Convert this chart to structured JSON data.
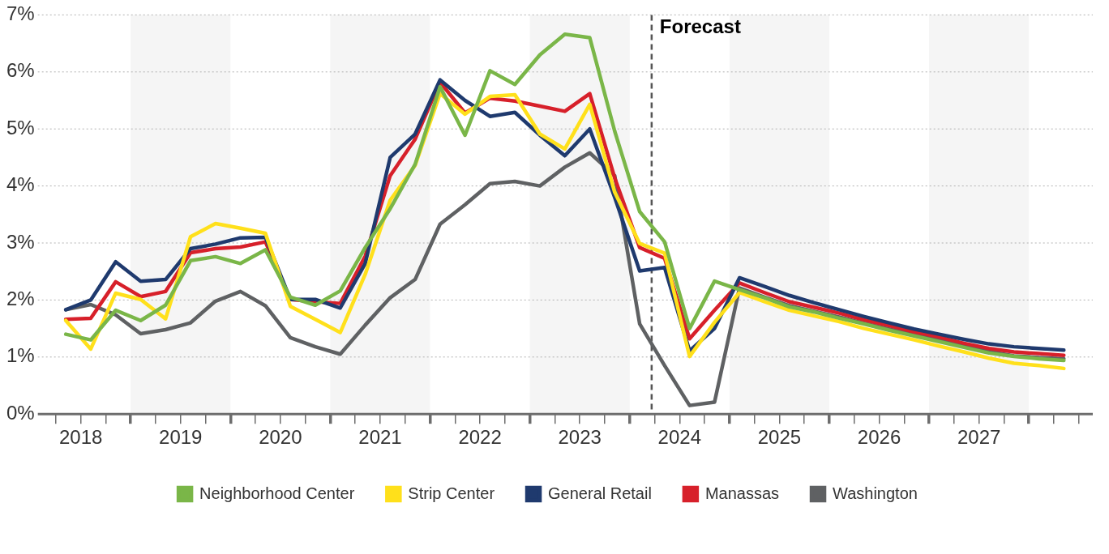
{
  "chart_data": {
    "type": "line",
    "x": [
      2018.35,
      2018.6,
      2018.85,
      2019.1,
      2019.35,
      2019.6,
      2019.85,
      2020.1,
      2020.35,
      2020.6,
      2020.85,
      2021.1,
      2021.35,
      2021.6,
      2021.85,
      2022.1,
      2022.35,
      2022.6,
      2022.85,
      2023.1,
      2023.35,
      2023.6,
      2023.85,
      2024.1,
      2024.35,
      2024.6,
      2024.85,
      2025.1,
      2025.35,
      2025.6,
      2025.85,
      2026.1,
      2026.35,
      2026.6,
      2026.85,
      2027.1,
      2027.35,
      2027.6,
      2027.85,
      2028.1,
      2028.35
    ],
    "series": [
      {
        "name": "Neighborhood Center",
        "color": "#7ab648",
        "values": [
          1.4,
          1.3,
          1.82,
          1.64,
          1.91,
          2.69,
          2.76,
          2.64,
          2.88,
          2.05,
          1.91,
          2.16,
          2.92,
          3.6,
          4.38,
          5.74,
          4.89,
          6.02,
          5.78,
          6.3,
          6.66,
          6.6,
          4.96,
          3.55,
          3.02,
          1.5,
          2.33,
          2.18,
          2.04,
          1.88,
          1.79,
          1.68,
          1.58,
          1.47,
          1.37,
          1.27,
          1.17,
          1.07,
          1.01,
          0.97,
          0.94
        ]
      },
      {
        "name": "Strip Center",
        "color": "#ffe01b",
        "values": [
          1.64,
          1.14,
          2.12,
          2.01,
          1.67,
          3.11,
          3.34,
          3.26,
          3.17,
          1.89,
          1.66,
          1.43,
          2.45,
          3.75,
          4.36,
          5.62,
          5.26,
          5.57,
          5.6,
          4.91,
          4.65,
          5.43,
          3.89,
          2.99,
          2.82,
          1.01,
          1.61,
          2.13,
          1.97,
          1.82,
          1.72,
          1.62,
          1.5,
          1.4,
          1.3,
          1.19,
          1.09,
          0.98,
          0.89,
          0.85,
          0.8
        ]
      },
      {
        "name": "General Retail",
        "color": "#1f3a6e",
        "values": [
          1.83,
          2.0,
          2.67,
          2.33,
          2.36,
          2.9,
          2.98,
          3.09,
          3.1,
          2.01,
          2.01,
          1.86,
          2.64,
          4.5,
          4.91,
          5.86,
          5.5,
          5.22,
          5.29,
          4.89,
          4.53,
          5.0,
          3.8,
          2.51,
          2.57,
          1.11,
          1.5,
          2.39,
          2.24,
          2.08,
          1.95,
          1.83,
          1.71,
          1.6,
          1.49,
          1.4,
          1.31,
          1.23,
          1.18,
          1.15,
          1.12
        ]
      },
      {
        "name": "Manassas",
        "color": "#d7202a",
        "values": [
          1.66,
          1.68,
          2.32,
          2.06,
          2.15,
          2.83,
          2.9,
          2.93,
          3.02,
          2.01,
          1.97,
          1.94,
          2.77,
          4.18,
          4.82,
          5.82,
          5.28,
          5.54,
          5.49,
          5.4,
          5.31,
          5.62,
          4.14,
          2.92,
          2.73,
          1.32,
          1.82,
          2.3,
          2.13,
          1.97,
          1.87,
          1.77,
          1.65,
          1.55,
          1.44,
          1.35,
          1.24,
          1.15,
          1.09,
          1.06,
          1.03
        ]
      },
      {
        "name": "Washington",
        "color": "#5f6163",
        "values": [
          1.83,
          1.92,
          1.74,
          1.41,
          1.48,
          1.6,
          1.98,
          2.15,
          1.9,
          1.34,
          1.18,
          1.05,
          1.56,
          2.04,
          2.36,
          3.33,
          3.67,
          4.04,
          4.08,
          4.0,
          4.33,
          4.58,
          4.18,
          1.58,
          0.85,
          0.15,
          0.21,
          2.21,
          2.05,
          1.9,
          1.8,
          1.7,
          1.59,
          1.49,
          1.39,
          1.3,
          1.19,
          1.1,
          1.02,
          0.99,
          0.97
        ]
      }
    ],
    "xlim": [
      2018.07,
      2028.64
    ],
    "xticks": [
      {
        "value": 2018.25,
        "label": null
      },
      {
        "value": 2018.5,
        "label": "2018"
      },
      {
        "value": 2018.75,
        "label": null
      },
      {
        "value": 2019,
        "label": null
      },
      {
        "value": 2019.25,
        "label": null
      },
      {
        "value": 2019.5,
        "label": "2019"
      },
      {
        "value": 2019.75,
        "label": null
      },
      {
        "value": 2020,
        "label": null
      },
      {
        "value": 2020.25,
        "label": null
      },
      {
        "value": 2020.5,
        "label": "2020"
      },
      {
        "value": 2020.75,
        "label": null
      },
      {
        "value": 2021,
        "label": null
      },
      {
        "value": 2021.25,
        "label": null
      },
      {
        "value": 2021.5,
        "label": "2021"
      },
      {
        "value": 2021.75,
        "label": null
      },
      {
        "value": 2022,
        "label": null
      },
      {
        "value": 2022.25,
        "label": null
      },
      {
        "value": 2022.5,
        "label": "2022"
      },
      {
        "value": 2022.75,
        "label": null
      },
      {
        "value": 2023,
        "label": null
      },
      {
        "value": 2023.25,
        "label": null
      },
      {
        "value": 2023.5,
        "label": "2023"
      },
      {
        "value": 2023.75,
        "label": null
      },
      {
        "value": 2024,
        "label": null
      },
      {
        "value": 2024.25,
        "label": null
      },
      {
        "value": 2024.5,
        "label": "2024"
      },
      {
        "value": 2024.75,
        "label": null
      },
      {
        "value": 2025,
        "label": null
      },
      {
        "value": 2025.25,
        "label": null
      },
      {
        "value": 2025.5,
        "label": "2025"
      },
      {
        "value": 2025.75,
        "label": null
      },
      {
        "value": 2026,
        "label": null
      },
      {
        "value": 2026.25,
        "label": null
      },
      {
        "value": 2026.5,
        "label": "2026"
      },
      {
        "value": 2026.75,
        "label": null
      },
      {
        "value": 2027,
        "label": null
      },
      {
        "value": 2027.25,
        "label": null
      },
      {
        "value": 2027.5,
        "label": "2027"
      },
      {
        "value": 2027.75,
        "label": null
      },
      {
        "value": 2028,
        "label": null
      },
      {
        "value": 2028.25,
        "label": null
      },
      {
        "value": 2028.5,
        "label": null
      }
    ],
    "ylim": [
      0,
      7
    ],
    "yticks": [
      {
        "value": 0,
        "label": "0%"
      },
      {
        "value": 1,
        "label": "1%"
      },
      {
        "value": 2,
        "label": "2%"
      },
      {
        "value": 3,
        "label": "3%"
      },
      {
        "value": 4,
        "label": "4%"
      },
      {
        "value": 5,
        "label": "5%"
      },
      {
        "value": 6,
        "label": "6%"
      },
      {
        "value": 7,
        "label": "7%"
      }
    ],
    "grid": "y",
    "legend": "bottom",
    "marker": "none",
    "line_style": "solid",
    "ref_lines": [
      {
        "axis": "x",
        "value": 2024.22,
        "label": "Forecast",
        "color": "#555555",
        "line_style": "dashed"
      }
    ],
    "bands": [
      {
        "axis": "x",
        "from": 2019,
        "to": 2020,
        "color": "#f5f5f5"
      },
      {
        "axis": "x",
        "from": 2021,
        "to": 2022,
        "color": "#f5f5f5"
      },
      {
        "axis": "x",
        "from": 2023,
        "to": 2024,
        "color": "#f5f5f5"
      },
      {
        "axis": "x",
        "from": 2025,
        "to": 2026,
        "color": "#f5f5f5"
      },
      {
        "axis": "x",
        "from": 2027,
        "to": 2028,
        "color": "#f5f5f5"
      }
    ]
  }
}
